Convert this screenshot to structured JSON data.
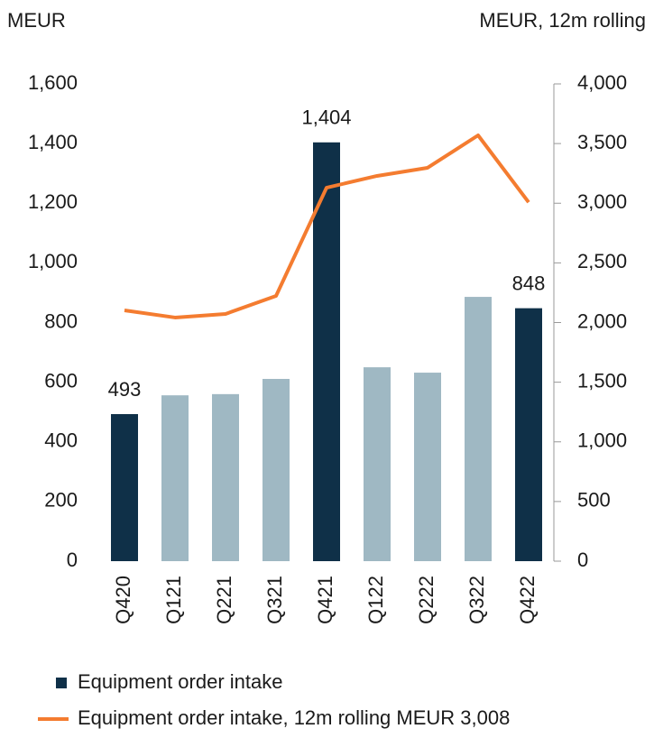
{
  "chart_data": {
    "type": "bar",
    "y_label": "MEUR",
    "y2_label": "MEUR, 12m rolling",
    "categories": [
      "Q420",
      "Q121",
      "Q221",
      "Q321",
      "Q421",
      "Q122",
      "Q222",
      "Q322",
      "Q422"
    ],
    "series": [
      {
        "name": "Equipment order intake",
        "type": "bar",
        "color": "#0f3048",
        "colors": [
          "#0f3048",
          "#9fb8c3",
          "#9fb8c3",
          "#9fb8c3",
          "#0f3048",
          "#9fb8c3",
          "#9fb8c3",
          "#9fb8c3",
          "#0f3048"
        ],
        "values": [
          493,
          556,
          560,
          611,
          1404,
          650,
          632,
          886,
          848
        ],
        "value_labels": [
          "493",
          null,
          null,
          null,
          "1,404",
          null,
          null,
          null,
          "848"
        ]
      },
      {
        "name": "Equipment order intake, 12m rolling MEUR 3,008",
        "type": "line",
        "color": "#f47c30",
        "axis": "y2",
        "values": [
          2102,
          2042,
          2072,
          2223,
          3130,
          3229,
          3297,
          3569,
          3008
        ]
      }
    ],
    "ylim": [
      0,
      1600
    ],
    "yticks": [
      0,
      200,
      400,
      600,
      800,
      {
        "value": 1000,
        "label": "1,000"
      },
      {
        "value": 1200,
        "label": "1,200"
      },
      {
        "value": 1400,
        "label": "1,400"
      },
      {
        "value": 1600,
        "label": "1,600"
      }
    ],
    "y2lim": [
      0,
      4000
    ],
    "y2ticks": [
      0,
      500,
      {
        "value": 1000,
        "label": "1,000"
      },
      {
        "value": 1500,
        "label": "1,500"
      },
      {
        "value": 2000,
        "label": "2,000"
      },
      {
        "value": 2500,
        "label": "2,500"
      },
      {
        "value": 3000,
        "label": "3,000"
      },
      {
        "value": 3500,
        "label": "3,500"
      },
      {
        "value": 4000,
        "label": "4,000"
      }
    ],
    "grid": false
  }
}
